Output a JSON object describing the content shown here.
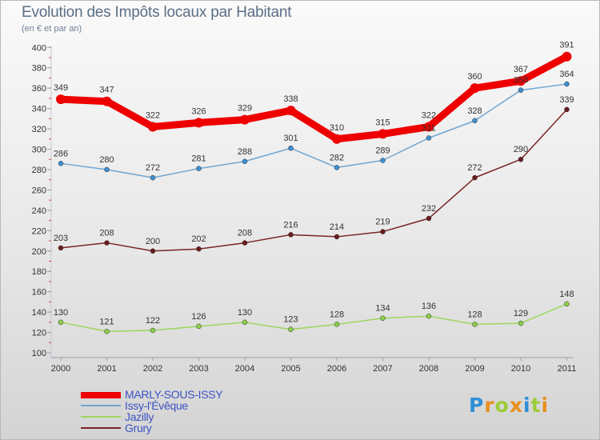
{
  "title": "Evolution des Impôts locaux par Habitant",
  "subtitle": "(en € et par an)",
  "logo": {
    "letters": [
      "P",
      "r",
      "o",
      "x",
      "i",
      "t",
      "i"
    ],
    "colors": [
      "#2e8fd6",
      "#e8901e",
      "#9ccc3a",
      "#e8901e",
      "#2e8fd6",
      "#9ccc3a",
      "#e8901e"
    ]
  },
  "chart_data": {
    "type": "line",
    "title": "Evolution des Impôts locaux par Habitant",
    "subtitle": "(en € et par an)",
    "xlabel": "",
    "ylabel": "",
    "ylim": [
      100,
      400
    ],
    "ytick_step": 20,
    "yticks": [
      "100",
      "120",
      "140",
      "160",
      "180",
      "200",
      "220",
      "240",
      "260",
      "280",
      "300",
      "320",
      "340",
      "360",
      "380",
      "400"
    ],
    "grid": false,
    "legend_position": "bottom-left",
    "categories": [
      "2000",
      "2001",
      "2002",
      "2003",
      "2004",
      "2005",
      "2006",
      "2007",
      "2008",
      "2009",
      "2010",
      "2011"
    ],
    "series": [
      {
        "name": "Grury",
        "color": "#7a2424",
        "marker": "#6b1c1c",
        "emphasis": false,
        "values": [
          203,
          208,
          200,
          202,
          208,
          216,
          214,
          219,
          232,
          272,
          290,
          339
        ],
        "labels": [
          "203",
          "208",
          "200",
          "202",
          "208",
          "216",
          "214",
          "219",
          "232",
          "272",
          "290",
          "339"
        ]
      },
      {
        "name": "Jazilly",
        "color": "#9cd65e",
        "marker": "#8ccf4a",
        "emphasis": false,
        "values": [
          130,
          121,
          122,
          126,
          130,
          123,
          128,
          134,
          136,
          128,
          129,
          148
        ],
        "labels": [
          "130",
          "121",
          "122",
          "126",
          "130",
          "123",
          "128",
          "134",
          "136",
          "128",
          "129",
          "148"
        ]
      },
      {
        "name": "Issy-l'Évêque",
        "color": "#6fa6d2",
        "marker": "#3f8fd0",
        "emphasis": false,
        "values": [
          286,
          280,
          272,
          281,
          288,
          301,
          282,
          289,
          311,
          328,
          358,
          364
        ],
        "labels": [
          "286",
          "280",
          "272",
          "281",
          "288",
          "301",
          "282",
          "289",
          "311",
          "328",
          "358",
          "364"
        ]
      },
      {
        "name": "MARLY-SOUS-ISSY",
        "color": "#ee0000",
        "marker": "#ee0000",
        "emphasis": true,
        "values": [
          349,
          347,
          322,
          326,
          329,
          338,
          310,
          315,
          322,
          360,
          367,
          391
        ],
        "labels": [
          "349",
          "347",
          "322",
          "326",
          "329",
          "338",
          "310",
          "315",
          "322",
          "360",
          "367",
          "391"
        ]
      }
    ],
    "legend": [
      {
        "name": "MARLY-SOUS-ISSY",
        "color": "#ee0000",
        "thickness": 8
      },
      {
        "name": "Issy-l'Évêque",
        "color": "#6fa6d2",
        "thickness": 2
      },
      {
        "name": "Jazilly",
        "color": "#9cd65e",
        "thickness": 2
      },
      {
        "name": "Grury",
        "color": "#7a2424",
        "thickness": 2
      }
    ]
  }
}
